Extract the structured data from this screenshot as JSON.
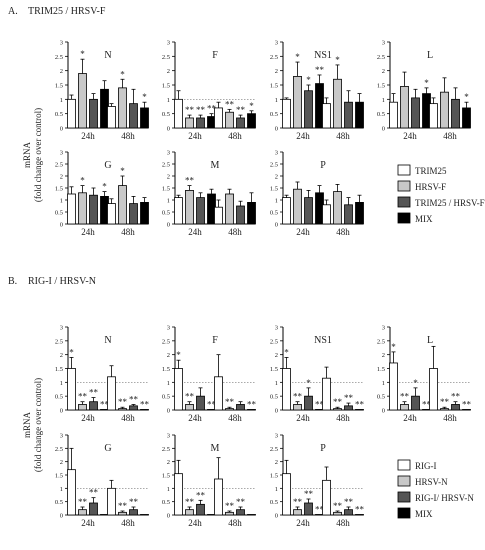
{
  "sections": [
    {
      "label": "A.",
      "title": "TRIM25 / HRSV-F",
      "ylabel_line1": "mRNA",
      "ylabel_line2": "(fold change over control)",
      "legend": [
        {
          "name": "TRIM25",
          "color": "#ffffff"
        },
        {
          "name": "HRSV-F",
          "color": "#c8c8c8"
        },
        {
          "name": "TRIM25 / HRSV-F",
          "color": "#555555"
        },
        {
          "name": "MIX",
          "color": "#000000"
        }
      ]
    },
    {
      "label": "B.",
      "title": "RIG-I / HRSV-N",
      "ylabel_line1": "mRNA",
      "ylabel_line2": "(fold change over control)",
      "legend": [
        {
          "name": "RIG-I",
          "color": "#ffffff"
        },
        {
          "name": "HRSV-N",
          "color": "#c8c8c8"
        },
        {
          "name": "RIG-I/ HRSV-N",
          "color": "#555555"
        },
        {
          "name": "MIX",
          "color": "#000000"
        }
      ]
    }
  ],
  "chart_data": [
    {
      "section": 0,
      "title": "N",
      "type": "bar",
      "categories": [
        "24h",
        "48h"
      ],
      "yticks": [
        0,
        0.5,
        1,
        1.5,
        2,
        2.5,
        3
      ],
      "ylim": [
        0,
        3
      ],
      "ref_line": null,
      "series": [
        {
          "values": [
            1.0,
            0.75
          ],
          "err": [
            0.15,
            0.1
          ],
          "stars": [
            "",
            ""
          ]
        },
        {
          "values": [
            1.9,
            1.4
          ],
          "err": [
            0.5,
            0.3
          ],
          "stars": [
            "*",
            "*"
          ]
        },
        {
          "values": [
            1.0,
            0.85
          ],
          "err": [
            0.2,
            0.5
          ],
          "stars": [
            "",
            ""
          ]
        },
        {
          "values": [
            1.35,
            0.7
          ],
          "err": [
            0.3,
            0.2
          ],
          "stars": [
            "",
            "*"
          ]
        }
      ]
    },
    {
      "section": 0,
      "title": "F",
      "type": "bar",
      "categories": [
        "24h",
        "48h"
      ],
      "yticks": [
        0,
        0.5,
        1,
        1.5,
        2,
        2.5,
        3
      ],
      "ylim": [
        0,
        3
      ],
      "ref_line": 1,
      "series": [
        {
          "values": [
            1.0,
            0.7
          ],
          "err": [
            0.3,
            0.2
          ],
          "stars": [
            "",
            ""
          ]
        },
        {
          "values": [
            0.35,
            0.55
          ],
          "err": [
            0.1,
            0.1
          ],
          "stars": [
            "**",
            "**"
          ]
        },
        {
          "values": [
            0.35,
            0.35
          ],
          "err": [
            0.1,
            0.1
          ],
          "stars": [
            "**",
            "**"
          ]
        },
        {
          "values": [
            0.4,
            0.5
          ],
          "err": [
            0.1,
            0.1
          ],
          "stars": [
            "**",
            "*"
          ]
        }
      ]
    },
    {
      "section": 0,
      "title": "NS1",
      "type": "bar",
      "categories": [
        "24h",
        "48h"
      ],
      "yticks": [
        0,
        0.5,
        1,
        1.5,
        2,
        2.5,
        3
      ],
      "ylim": [
        0,
        3
      ],
      "ref_line": null,
      "series": [
        {
          "values": [
            1.0,
            0.85
          ],
          "err": [
            0.05,
            0.2
          ],
          "stars": [
            "",
            ""
          ]
        },
        {
          "values": [
            1.8,
            1.7
          ],
          "err": [
            0.5,
            0.5
          ],
          "stars": [
            "*",
            "*"
          ]
        },
        {
          "values": [
            1.3,
            0.9
          ],
          "err": [
            0.2,
            0.4
          ],
          "stars": [
            "*",
            ""
          ]
        },
        {
          "values": [
            1.55,
            0.9
          ],
          "err": [
            0.3,
            0.3
          ],
          "stars": [
            "**",
            ""
          ]
        }
      ]
    },
    {
      "section": 0,
      "title": "L",
      "type": "bar",
      "categories": [
        "24h",
        "48h"
      ],
      "yticks": [
        0,
        0.5,
        1,
        1.5,
        2,
        2.5,
        3
      ],
      "ylim": [
        0,
        3
      ],
      "ref_line": null,
      "series": [
        {
          "values": [
            0.9,
            0.85
          ],
          "err": [
            0.3,
            0.2
          ],
          "stars": [
            "",
            ""
          ]
        },
        {
          "values": [
            1.45,
            1.25
          ],
          "err": [
            0.5,
            0.5
          ],
          "stars": [
            "",
            ""
          ]
        },
        {
          "values": [
            1.05,
            1.0
          ],
          "err": [
            0.3,
            0.4
          ],
          "stars": [
            "",
            ""
          ]
        },
        {
          "values": [
            1.2,
            0.7
          ],
          "err": [
            0.2,
            0.2
          ],
          "stars": [
            "*",
            "*"
          ]
        }
      ]
    },
    {
      "section": 0,
      "title": "G",
      "type": "bar",
      "categories": [
        "24h",
        "48h"
      ],
      "yticks": [
        0,
        0.5,
        1,
        1.5,
        2,
        2.5,
        3
      ],
      "ylim": [
        0,
        3
      ],
      "ref_line": null,
      "series": [
        {
          "values": [
            1.25,
            0.85
          ],
          "err": [
            0.3,
            0.2
          ],
          "stars": [
            "",
            ""
          ]
        },
        {
          "values": [
            1.3,
            1.6
          ],
          "err": [
            0.3,
            0.4
          ],
          "stars": [
            "*",
            "*"
          ]
        },
        {
          "values": [
            1.2,
            0.85
          ],
          "err": [
            0.3,
            0.3
          ],
          "stars": [
            "",
            ""
          ]
        },
        {
          "values": [
            1.15,
            0.9
          ],
          "err": [
            0.2,
            0.2
          ],
          "stars": [
            "*",
            ""
          ]
        }
      ]
    },
    {
      "section": 0,
      "title": "M",
      "type": "bar",
      "categories": [
        "24h",
        "48h"
      ],
      "yticks": [
        0,
        0.5,
        1,
        1.5,
        2,
        2.5,
        3
      ],
      "ylim": [
        0,
        3
      ],
      "ref_line": null,
      "series": [
        {
          "values": [
            1.1,
            0.7
          ],
          "err": [
            0.1,
            0.3
          ],
          "stars": [
            "",
            ""
          ]
        },
        {
          "values": [
            1.4,
            1.25
          ],
          "err": [
            0.2,
            0.2
          ],
          "stars": [
            "**",
            ""
          ]
        },
        {
          "values": [
            1.1,
            0.75
          ],
          "err": [
            0.2,
            0.2
          ],
          "stars": [
            "",
            ""
          ]
        },
        {
          "values": [
            1.25,
            0.9
          ],
          "err": [
            0.2,
            0.4
          ],
          "stars": [
            "",
            ""
          ]
        }
      ]
    },
    {
      "section": 0,
      "title": "P",
      "type": "bar",
      "categories": [
        "24h",
        "48h"
      ],
      "yticks": [
        0,
        0.5,
        1,
        1.5,
        2,
        2.5,
        3
      ],
      "ylim": [
        0,
        3
      ],
      "ref_line": null,
      "series": [
        {
          "values": [
            1.1,
            0.8
          ],
          "err": [
            0.1,
            0.2
          ],
          "stars": [
            "",
            ""
          ]
        },
        {
          "values": [
            1.45,
            1.35
          ],
          "err": [
            0.3,
            0.3
          ],
          "stars": [
            "",
            ""
          ]
        },
        {
          "values": [
            1.1,
            0.8
          ],
          "err": [
            0.3,
            0.3
          ],
          "stars": [
            "",
            ""
          ]
        },
        {
          "values": [
            1.3,
            0.9
          ],
          "err": [
            0.3,
            0.3
          ],
          "stars": [
            "",
            ""
          ]
        }
      ]
    },
    {
      "section": 1,
      "title": "N",
      "type": "bar",
      "categories": [
        "24h",
        "48h"
      ],
      "yticks": [
        0,
        0.5,
        1,
        1.5,
        2,
        2.5,
        3
      ],
      "ylim": [
        0,
        3
      ],
      "ref_line": 1,
      "series": [
        {
          "values": [
            1.5,
            1.2
          ],
          "err": [
            0.4,
            0.4
          ],
          "stars": [
            "*",
            ""
          ]
        },
        {
          "values": [
            0.2,
            0.05
          ],
          "err": [
            0.1,
            0.05
          ],
          "stars": [
            "**",
            "**"
          ]
        },
        {
          "values": [
            0.3,
            0.15
          ],
          "err": [
            0.15,
            0.05
          ],
          "stars": [
            "**",
            "**"
          ]
        },
        {
          "values": [
            0.02,
            0.02
          ],
          "err": [
            0,
            0
          ],
          "stars": [
            "**",
            "**"
          ]
        }
      ]
    },
    {
      "section": 1,
      "title": "F",
      "type": "bar",
      "categories": [
        "24h",
        "48h"
      ],
      "yticks": [
        0,
        0.5,
        1,
        1.5,
        2,
        2.5,
        3
      ],
      "ylim": [
        0,
        3
      ],
      "ref_line": 1,
      "series": [
        {
          "values": [
            1.5,
            1.2
          ],
          "err": [
            0.3,
            0.8
          ],
          "stars": [
            "*",
            ""
          ]
        },
        {
          "values": [
            0.2,
            0.05
          ],
          "err": [
            0.1,
            0.05
          ],
          "stars": [
            "**",
            "**"
          ]
        },
        {
          "values": [
            0.5,
            0.2
          ],
          "err": [
            0.3,
            0.1
          ],
          "stars": [
            "",
            ""
          ]
        },
        {
          "values": [
            0.02,
            0.02
          ],
          "err": [
            0,
            0
          ],
          "stars": [
            "**",
            "**"
          ]
        }
      ]
    },
    {
      "section": 1,
      "title": "NS1",
      "type": "bar",
      "categories": [
        "24h",
        "48h"
      ],
      "yticks": [
        0,
        0.5,
        1,
        1.5,
        2,
        2.5,
        3
      ],
      "ylim": [
        0,
        3
      ],
      "ref_line": 1,
      "series": [
        {
          "values": [
            1.5,
            1.15
          ],
          "err": [
            0.4,
            0.4
          ],
          "stars": [
            "*",
            ""
          ]
        },
        {
          "values": [
            0.2,
            0.05
          ],
          "err": [
            0.1,
            0.05
          ],
          "stars": [
            "**",
            "**"
          ]
        },
        {
          "values": [
            0.5,
            0.15
          ],
          "err": [
            0.3,
            0.1
          ],
          "stars": [
            "*",
            "**"
          ]
        },
        {
          "values": [
            0.02,
            0.02
          ],
          "err": [
            0,
            0
          ],
          "stars": [
            "**",
            "**"
          ]
        }
      ]
    },
    {
      "section": 1,
      "title": "L",
      "type": "bar",
      "categories": [
        "24h",
        "48h"
      ],
      "yticks": [
        0,
        0.5,
        1,
        1.5,
        2,
        2.5,
        3
      ],
      "ylim": [
        0,
        3
      ],
      "ref_line": 1,
      "series": [
        {
          "values": [
            1.7,
            1.5
          ],
          "err": [
            0.4,
            0.8
          ],
          "stars": [
            "*",
            ""
          ]
        },
        {
          "values": [
            0.2,
            0.05
          ],
          "err": [
            0.1,
            0.05
          ],
          "stars": [
            "**",
            "**"
          ]
        },
        {
          "values": [
            0.5,
            0.2
          ],
          "err": [
            0.3,
            0.1
          ],
          "stars": [
            "*",
            "**"
          ]
        },
        {
          "values": [
            0.02,
            0.02
          ],
          "err": [
            0,
            0
          ],
          "stars": [
            "**",
            "**"
          ]
        }
      ]
    },
    {
      "section": 1,
      "title": "G",
      "type": "bar",
      "categories": [
        "24h",
        "48h"
      ],
      "yticks": [
        0,
        0.5,
        1,
        1.5,
        2,
        2.5,
        3
      ],
      "ylim": [
        0,
        3
      ],
      "ref_line": 1,
      "series": [
        {
          "values": [
            1.7,
            1.0
          ],
          "err": [
            0.8,
            0.3
          ],
          "stars": [
            "",
            ""
          ]
        },
        {
          "values": [
            0.2,
            0.1
          ],
          "err": [
            0.1,
            0.05
          ],
          "stars": [
            "**",
            "**"
          ]
        },
        {
          "values": [
            0.45,
            0.2
          ],
          "err": [
            0.2,
            0.1
          ],
          "stars": [
            "**",
            "**"
          ]
        },
        {
          "values": [
            0.02,
            0.02
          ],
          "err": [
            0,
            0
          ],
          "stars": [
            "",
            ""
          ]
        }
      ]
    },
    {
      "section": 1,
      "title": "M",
      "type": "bar",
      "categories": [
        "24h",
        "48h"
      ],
      "yticks": [
        0,
        0.5,
        1,
        1.5,
        2,
        2.5,
        3
      ],
      "ylim": [
        0,
        3
      ],
      "ref_line": 1,
      "series": [
        {
          "values": [
            1.55,
            1.35
          ],
          "err": [
            0.5,
            0.8
          ],
          "stars": [
            "",
            ""
          ]
        },
        {
          "values": [
            0.2,
            0.1
          ],
          "err": [
            0.1,
            0.05
          ],
          "stars": [
            "**",
            "**"
          ]
        },
        {
          "values": [
            0.4,
            0.2
          ],
          "err": [
            0.15,
            0.1
          ],
          "stars": [
            "**",
            "**"
          ]
        },
        {
          "values": [
            0.02,
            0.02
          ],
          "err": [
            0,
            0
          ],
          "stars": [
            "",
            ""
          ]
        }
      ]
    },
    {
      "section": 1,
      "title": "P",
      "type": "bar",
      "categories": [
        "24h",
        "48h"
      ],
      "yticks": [
        0,
        0.5,
        1,
        1.5,
        2,
        2.5,
        3
      ],
      "ylim": [
        0,
        3
      ],
      "ref_line": 1,
      "series": [
        {
          "values": [
            1.55,
            1.3
          ],
          "err": [
            0.5,
            0.5
          ],
          "stars": [
            "",
            ""
          ]
        },
        {
          "values": [
            0.2,
            0.1
          ],
          "err": [
            0.1,
            0.05
          ],
          "stars": [
            "**",
            "**"
          ]
        },
        {
          "values": [
            0.45,
            0.2
          ],
          "err": [
            0.15,
            0.1
          ],
          "stars": [
            "**",
            "**"
          ]
        },
        {
          "values": [
            0.02,
            0.02
          ],
          "err": [
            0,
            0
          ],
          "stars": [
            "**",
            "**"
          ]
        }
      ]
    }
  ]
}
